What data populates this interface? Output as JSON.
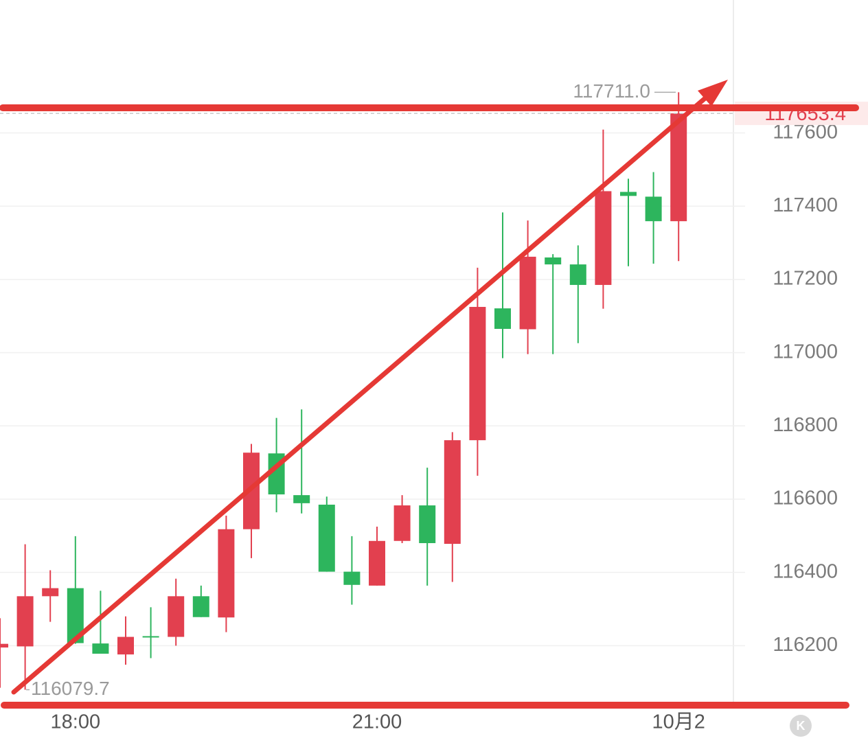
{
  "chart_data": {
    "type": "candlestick",
    "categories": [
      null,
      null,
      null,
      "18:00",
      null,
      null,
      null,
      null,
      null,
      null,
      null,
      null,
      null,
      null,
      null,
      "21:00",
      null,
      null,
      null,
      null,
      null,
      null,
      null,
      null,
      null,
      null,
      null,
      "10月2"
    ],
    "open": [
      116195,
      116198,
      116335,
      116357,
      116206,
      116176,
      116226,
      116224,
      116335,
      116277,
      116518,
      116725,
      116611,
      116585,
      116402,
      116364,
      116486,
      116583,
      116478,
      116761,
      117121,
      117064,
      117260,
      117241,
      117185,
      117439,
      117426,
      117359
    ],
    "high": [
      116275,
      116477,
      116406,
      116499,
      116350,
      116280,
      116305,
      116383,
      116364,
      116555,
      116751,
      116822,
      116845,
      116607,
      116499,
      116525,
      116611,
      116686,
      116783,
      117232,
      117383,
      117361,
      117269,
      117293,
      117609,
      117475,
      117493,
      117711.0
    ],
    "low": [
      116085,
      116079.7,
      116265,
      116205,
      116178,
      116148,
      116166,
      116200,
      116278,
      116237,
      116439,
      116564,
      116561,
      116402,
      116312,
      116364,
      116480,
      116364,
      116374,
      116664,
      116985,
      116996,
      116996,
      117026,
      117120,
      117236,
      117243,
      117250
    ],
    "close": [
      116205,
      116335,
      116357,
      116207,
      116178,
      116224,
      116224,
      116335,
      116278,
      116518,
      116727,
      116613,
      116589,
      116402,
      116366,
      116486,
      116583,
      116480,
      116761,
      117125,
      117065,
      117262,
      117241,
      117185,
      117441,
      117428,
      117359,
      117653.4
    ],
    "up_color": "#e2404f",
    "down_color": "#2db55d",
    "ylim": [
      116030,
      117963
    ],
    "yticks": [
      116200,
      116400,
      116600,
      116800,
      117000,
      117200,
      117400,
      117600
    ],
    "grid": true,
    "max_label": {
      "value": 117711.0,
      "label": "117711.0"
    },
    "min_label": {
      "value": 116079.7,
      "label": "116079.7"
    },
    "last_price": {
      "value": 117653.4,
      "label": "117653.4"
    }
  }
}
